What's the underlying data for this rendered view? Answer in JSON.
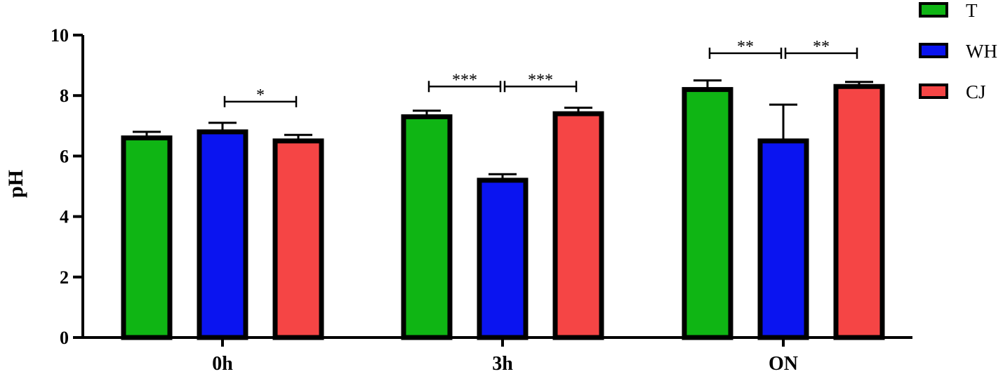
{
  "chart_data": {
    "type": "bar",
    "title": "",
    "xlabel": "",
    "ylabel": "pH",
    "ylim": [
      0,
      10
    ],
    "yticks": [
      0,
      2,
      4,
      6,
      8,
      10
    ],
    "categories": [
      "0h",
      "3h",
      "ON"
    ],
    "series": [
      {
        "name": "T",
        "color": "#0fb514",
        "values": [
          6.6,
          7.3,
          8.2
        ],
        "errors": [
          0.2,
          0.2,
          0.3
        ]
      },
      {
        "name": "WH",
        "color": "#0a14f0",
        "values": [
          6.8,
          5.2,
          6.5
        ],
        "errors": [
          0.3,
          0.2,
          1.2
        ]
      },
      {
        "name": "CJ",
        "color": "#f54545",
        "values": [
          6.5,
          7.4,
          8.3
        ],
        "errors": [
          0.2,
          0.2,
          0.15
        ]
      }
    ],
    "significance": [
      {
        "category": "0h",
        "from": "WH",
        "to": "CJ",
        "label": "*",
        "y": 7.8
      },
      {
        "category": "3h",
        "from": "T",
        "to": "WH",
        "label": "***",
        "y": 8.3
      },
      {
        "category": "3h",
        "from": "WH",
        "to": "CJ",
        "label": "***",
        "y": 8.3
      },
      {
        "category": "ON",
        "from": "T",
        "to": "WH",
        "label": "**",
        "y": 9.4
      },
      {
        "category": "ON",
        "from": "WH",
        "to": "CJ",
        "label": "**",
        "y": 9.4
      }
    ],
    "legend_position": "top-right",
    "grid": false
  }
}
